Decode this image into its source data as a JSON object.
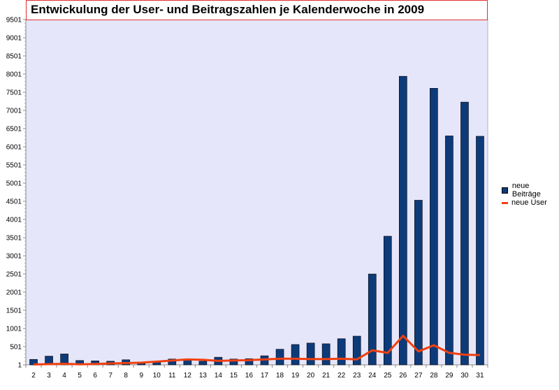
{
  "chart_data": {
    "type": "bar",
    "title": "Entwickulung der User- und Beitragszahlen je Kalenderwoche in 2009",
    "categories": [
      "2",
      "3",
      "4",
      "5",
      "6",
      "7",
      "8",
      "9",
      "10",
      "11",
      "12",
      "13",
      "14",
      "15",
      "16",
      "17",
      "18",
      "19",
      "20",
      "21",
      "22",
      "23",
      "24",
      "25",
      "26",
      "27",
      "28",
      "29",
      "30",
      "31"
    ],
    "y_ticks": [
      "1",
      "501",
      "1001",
      "1501",
      "2001",
      "2501",
      "3001",
      "3501",
      "4001",
      "4501",
      "5001",
      "5501",
      "6001",
      "6501",
      "7001",
      "7501",
      "8001",
      "8501",
      "9001",
      "9501"
    ],
    "ylim": [
      1,
      9501
    ],
    "grid": false,
    "legend_position": "right",
    "series": [
      {
        "name": "neue Beiträge",
        "kind": "bar",
        "color": "#0d3b7a",
        "values": [
          150,
          240,
          300,
          120,
          110,
          100,
          140,
          40,
          80,
          160,
          130,
          100,
          210,
          160,
          170,
          250,
          430,
          560,
          600,
          580,
          720,
          790,
          2500,
          3540,
          7940,
          4530,
          7610,
          6300,
          7230,
          6290
        ]
      },
      {
        "name": "neue User",
        "kind": "line",
        "color": "#f04010",
        "values": [
          10,
          20,
          30,
          15,
          25,
          40,
          50,
          60,
          90,
          120,
          150,
          140,
          110,
          120,
          130,
          150,
          170,
          170,
          160,
          160,
          170,
          150,
          400,
          330,
          800,
          370,
          540,
          330,
          280,
          270
        ]
      }
    ]
  }
}
